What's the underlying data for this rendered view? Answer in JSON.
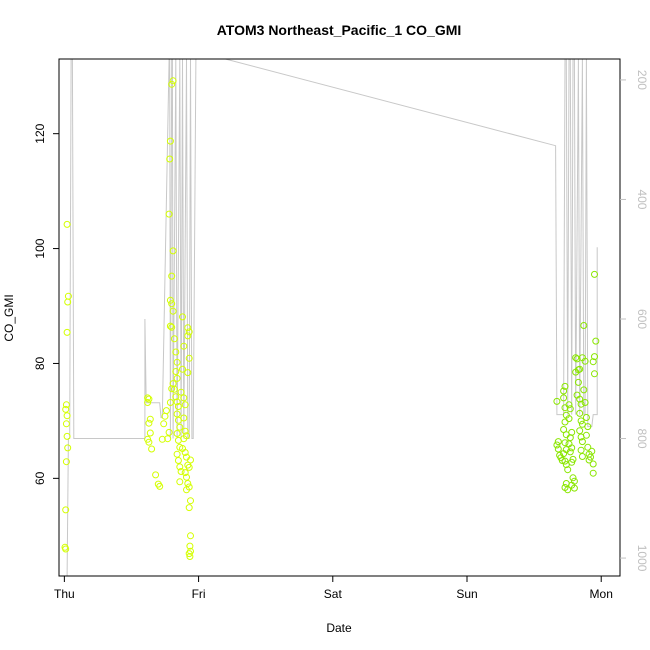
{
  "chart_data": {
    "type": "scatter",
    "title": "ATOM3 Northeast_Pacific_1 CO_GMI",
    "xlabel": "Date",
    "ylabel": "CO_GMI",
    "x_ticks": [
      "Thu",
      "Fri",
      "Sat",
      "Sun",
      "Mon"
    ],
    "x_tick_values": [
      0,
      1,
      2,
      3,
      4
    ],
    "xlim": [
      -0.04,
      4.14
    ],
    "ylim": [
      43,
      133
    ],
    "y_ticks": [
      60,
      80,
      100,
      120
    ],
    "y2_ticks": [
      200,
      400,
      600,
      800,
      1000
    ],
    "y2lim": [
      1030,
      165
    ],
    "colors": {
      "points_early": "#d4ff00",
      "points_late": "#8ae600",
      "right_axis": "#c0c0c0",
      "line": "#c8c8c8"
    },
    "series": [
      {
        "type": "scatter",
        "points": [
          [
            0.02,
            104.2
          ],
          [
            0.03,
            91.7
          ],
          [
            0.025,
            90.7
          ],
          [
            0.02,
            85.4
          ],
          [
            0.015,
            72.8
          ],
          [
            0.01,
            72.0
          ],
          [
            0.02,
            70.9
          ],
          [
            0.015,
            69.5
          ],
          [
            0.02,
            67.3
          ],
          [
            0.025,
            65.3
          ],
          [
            0.015,
            62.9
          ],
          [
            0.01,
            54.5
          ],
          [
            0.005,
            48.0
          ],
          [
            0.01,
            47.7
          ],
          [
            0.62,
            74.0
          ],
          [
            0.63,
            73.8
          ],
          [
            0.62,
            73.2
          ],
          [
            0.64,
            70.3
          ],
          [
            0.63,
            69.6
          ],
          [
            0.64,
            67.9
          ],
          [
            0.62,
            66.8
          ],
          [
            0.63,
            66.3
          ],
          [
            0.65,
            65.1
          ],
          [
            0.68,
            60.6
          ],
          [
            0.7,
            59.0
          ],
          [
            0.71,
            58.6
          ],
          [
            0.73,
            66.8
          ],
          [
            0.74,
            69.5
          ],
          [
            0.75,
            70.8
          ],
          [
            0.76,
            71.8
          ],
          [
            0.77,
            66.9
          ],
          [
            0.78,
            68.0
          ],
          [
            0.79,
            73.2
          ],
          [
            0.8,
            75.6
          ],
          [
            0.81,
            76.5
          ],
          [
            0.78,
            106.0
          ],
          [
            0.79,
            118.7
          ],
          [
            0.785,
            115.6
          ],
          [
            0.8,
            128.6
          ],
          [
            0.81,
            129.2
          ],
          [
            0.8,
            95.2
          ],
          [
            0.81,
            99.6
          ],
          [
            0.79,
            91.0
          ],
          [
            0.8,
            90.4
          ],
          [
            0.81,
            89.1
          ],
          [
            0.79,
            86.5
          ],
          [
            0.8,
            86.3
          ],
          [
            0.82,
            84.3
          ],
          [
            0.83,
            82.0
          ],
          [
            0.84,
            80.2
          ],
          [
            0.83,
            78.6
          ],
          [
            0.84,
            77.4
          ],
          [
            0.82,
            75.5
          ],
          [
            0.83,
            74.2
          ],
          [
            0.84,
            73.3
          ],
          [
            0.85,
            72.5
          ],
          [
            0.84,
            71.2
          ],
          [
            0.85,
            70.1
          ],
          [
            0.86,
            68.9
          ],
          [
            0.84,
            67.8
          ],
          [
            0.85,
            66.6
          ],
          [
            0.86,
            65.4
          ],
          [
            0.84,
            64.2
          ],
          [
            0.85,
            63.1
          ],
          [
            0.86,
            62.0
          ],
          [
            0.87,
            61.2
          ],
          [
            0.86,
            59.4
          ],
          [
            0.88,
            88.1
          ],
          [
            0.89,
            83.0
          ],
          [
            0.88,
            79.0
          ],
          [
            0.87,
            75.0
          ],
          [
            0.89,
            74.0
          ],
          [
            0.9,
            72.8
          ],
          [
            0.89,
            70.5
          ],
          [
            0.9,
            68.2
          ],
          [
            0.91,
            67.4
          ],
          [
            0.89,
            66.9
          ],
          [
            0.88,
            65.2
          ],
          [
            0.9,
            64.5
          ],
          [
            0.91,
            63.7
          ],
          [
            0.92,
            62.3
          ],
          [
            0.9,
            61.0
          ],
          [
            0.91,
            60.2
          ],
          [
            0.92,
            59.1
          ],
          [
            0.93,
            58.5
          ],
          [
            0.91,
            58.0
          ],
          [
            0.92,
            86.2
          ],
          [
            0.93,
            85.5
          ],
          [
            0.92,
            84.8
          ],
          [
            0.93,
            80.9
          ],
          [
            0.92,
            78.4
          ],
          [
            0.94,
            63.2
          ],
          [
            0.93,
            61.9
          ],
          [
            0.94,
            56.1
          ],
          [
            0.93,
            54.9
          ],
          [
            0.94,
            50.0
          ],
          [
            0.935,
            48.2
          ],
          [
            0.94,
            47.3
          ],
          [
            0.93,
            46.9
          ],
          [
            0.935,
            46.4
          ],
          [
            3.67,
            73.4
          ],
          [
            3.68,
            66.4
          ],
          [
            3.67,
            65.8
          ],
          [
            3.68,
            65.1
          ],
          [
            3.69,
            64.0
          ],
          [
            3.7,
            63.6
          ],
          [
            3.71,
            63.1
          ],
          [
            3.72,
            75.2
          ],
          [
            3.73,
            76.0
          ],
          [
            3.72,
            74.0
          ],
          [
            3.73,
            72.3
          ],
          [
            3.74,
            71.0
          ],
          [
            3.73,
            69.8
          ],
          [
            3.72,
            68.5
          ],
          [
            3.74,
            67.6
          ],
          [
            3.73,
            66.2
          ],
          [
            3.74,
            65.0
          ],
          [
            3.72,
            64.3
          ],
          [
            3.73,
            63.0
          ],
          [
            3.74,
            62.4
          ],
          [
            3.75,
            61.5
          ],
          [
            3.74,
            59.1
          ],
          [
            3.73,
            58.4
          ],
          [
            3.75,
            58.0
          ],
          [
            3.76,
            72.8
          ],
          [
            3.77,
            72.1
          ],
          [
            3.76,
            70.4
          ],
          [
            3.78,
            68.0
          ],
          [
            3.77,
            67.1
          ],
          [
            3.76,
            66.0
          ],
          [
            3.78,
            65.3
          ],
          [
            3.77,
            64.6
          ],
          [
            3.79,
            63.3
          ],
          [
            3.78,
            62.8
          ],
          [
            3.79,
            60.1
          ],
          [
            3.8,
            59.5
          ],
          [
            3.78,
            58.8
          ],
          [
            3.8,
            58.3
          ],
          [
            3.81,
            81.0
          ],
          [
            3.82,
            80.8
          ],
          [
            3.81,
            78.5
          ],
          [
            3.83,
            78.9
          ],
          [
            3.84,
            79.0
          ],
          [
            3.83,
            76.7
          ],
          [
            3.82,
            74.5
          ],
          [
            3.84,
            73.8
          ],
          [
            3.85,
            72.9
          ],
          [
            3.84,
            71.3
          ],
          [
            3.85,
            70.0
          ],
          [
            3.86,
            69.4
          ],
          [
            3.84,
            68.3
          ],
          [
            3.85,
            67.2
          ],
          [
            3.86,
            66.4
          ],
          [
            3.85,
            64.9
          ],
          [
            3.86,
            63.8
          ],
          [
            3.87,
            86.6
          ],
          [
            3.86,
            81.0
          ],
          [
            3.88,
            80.4
          ],
          [
            3.87,
            75.4
          ],
          [
            3.88,
            73.2
          ],
          [
            3.89,
            70.6
          ],
          [
            3.9,
            69.0
          ],
          [
            3.89,
            67.5
          ],
          [
            3.9,
            65.4
          ],
          [
            3.91,
            64.2
          ],
          [
            3.92,
            63.7
          ],
          [
            3.91,
            63.2
          ],
          [
            3.93,
            64.7
          ],
          [
            3.94,
            62.5
          ],
          [
            3.95,
            95.5
          ],
          [
            3.96,
            83.9
          ],
          [
            3.95,
            81.2
          ],
          [
            3.94,
            80.3
          ],
          [
            3.95,
            78.2
          ],
          [
            3.94,
            60.9
          ]
        ]
      },
      {
        "type": "line",
        "axis": "right",
        "points": [
          [
            0.02,
            1030
          ],
          [
            0.03,
            800
          ],
          [
            0.04,
            800
          ],
          [
            0.05,
            165
          ],
          [
            0.06,
            165
          ],
          [
            0.07,
            800
          ],
          [
            0.6,
            800
          ],
          [
            0.6,
            600
          ],
          [
            0.61,
            740
          ],
          [
            0.71,
            740
          ],
          [
            0.72,
            765
          ],
          [
            0.73,
            765
          ],
          [
            0.78,
            165
          ],
          [
            0.785,
            165
          ],
          [
            0.79,
            800
          ],
          [
            0.8,
            165
          ],
          [
            0.805,
            165
          ],
          [
            0.81,
            800
          ],
          [
            0.83,
            165
          ],
          [
            0.84,
            800
          ],
          [
            0.86,
            165
          ],
          [
            0.87,
            800
          ],
          [
            0.88,
            165
          ],
          [
            0.89,
            800
          ],
          [
            0.91,
            165
          ],
          [
            0.92,
            800
          ],
          [
            0.93,
            800
          ],
          [
            0.94,
            165
          ],
          [
            0.95,
            800
          ],
          [
            0.96,
            800
          ],
          [
            0.98,
            165
          ],
          [
            1.2,
            165
          ],
          [
            3.66,
            310
          ],
          [
            3.67,
            760
          ],
          [
            3.72,
            760
          ],
          [
            3.73,
            165
          ],
          [
            3.74,
            165
          ],
          [
            3.75,
            760
          ],
          [
            3.76,
            165
          ],
          [
            3.77,
            165
          ],
          [
            3.78,
            760
          ],
          [
            3.79,
            165
          ],
          [
            3.8,
            165
          ],
          [
            3.81,
            760
          ],
          [
            3.83,
            165
          ],
          [
            3.84,
            760
          ],
          [
            3.86,
            165
          ],
          [
            3.87,
            760
          ],
          [
            3.88,
            760
          ],
          [
            3.89,
            165
          ],
          [
            3.9,
            780
          ],
          [
            3.93,
            780
          ],
          [
            3.94,
            760
          ],
          [
            3.97,
            760
          ],
          [
            3.97,
            480
          ]
        ]
      }
    ]
  }
}
